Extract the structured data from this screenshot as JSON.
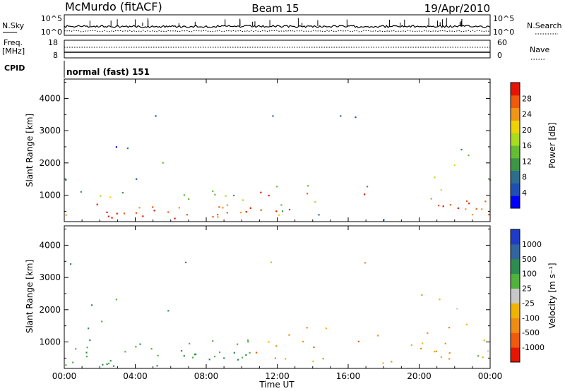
{
  "header": {
    "station": "McMurdo (fitACF)",
    "beam": "Beam 15",
    "date": "19/Apr/2010"
  },
  "top_panels": {
    "nsky_label": "N.Sky",
    "nsky_ticks": [
      "10^5",
      "10^0"
    ],
    "nsearch_label": "N.Search",
    "nsearch_ticks": [
      "10^5",
      "10^0"
    ],
    "freq_label_line1": "Freq.",
    "freq_label_line2": "[MHz]",
    "freq_ticks": [
      "18",
      "8"
    ],
    "nave_label": "Nave",
    "nave_ticks": [
      "60",
      "0"
    ],
    "cpid_label": "CPID",
    "cpid_value": "normal (fast) 151"
  },
  "chart_data": [
    {
      "type": "heatmap",
      "name": "power-panel",
      "ylabel": "Slant Range [km]",
      "xlabel": "",
      "yticks": [
        "1000",
        "2000",
        "3000",
        "4000"
      ],
      "ylim": [
        180,
        4600
      ],
      "xlim_hours": [
        0,
        24
      ],
      "colorbar_label": "Power [dB]",
      "colorbar_ticks": [
        "4",
        "8",
        "12",
        "16",
        "20",
        "24",
        "28"
      ],
      "colorbar_colors": [
        "#0000ff",
        "#1e50b4",
        "#2d6e8c",
        "#3c9646",
        "#64be32",
        "#aadc1e",
        "#f0d200",
        "#f09614",
        "#f05a0a",
        "#e61400"
      ]
    },
    {
      "type": "heatmap",
      "name": "velocity-panel",
      "ylabel": "Slant Range [km]",
      "xlabel": "Time UT",
      "yticks": [
        "1000",
        "2000",
        "3000",
        "4000"
      ],
      "ylim": [
        180,
        4600
      ],
      "xlim_hours": [
        0,
        24
      ],
      "xticks": [
        "00:00",
        "04:00",
        "08:00",
        "12:00",
        "16:00",
        "20:00",
        "00:00"
      ],
      "colorbar_label": "Velocity [m s⁻¹]",
      "colorbar_ticks": [
        "1000",
        "500",
        "100",
        "25",
        "-25",
        "-100",
        "-500",
        "-1000"
      ],
      "colorbar_colors": [
        "#1e3cc8",
        "#3264a0",
        "#2d8c50",
        "#50b43c",
        "#c8c8c8",
        "#f0b400",
        "#f08c14",
        "#f05a0a",
        "#e61400"
      ]
    }
  ]
}
